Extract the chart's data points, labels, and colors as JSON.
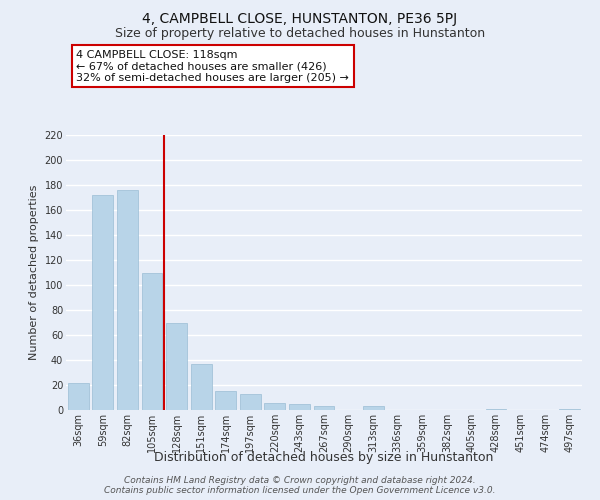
{
  "title": "4, CAMPBELL CLOSE, HUNSTANTON, PE36 5PJ",
  "subtitle": "Size of property relative to detached houses in Hunstanton",
  "xlabel": "Distribution of detached houses by size in Hunstanton",
  "ylabel": "Number of detached properties",
  "categories": [
    "36sqm",
    "59sqm",
    "82sqm",
    "105sqm",
    "128sqm",
    "151sqm",
    "174sqm",
    "197sqm",
    "220sqm",
    "243sqm",
    "267sqm",
    "290sqm",
    "313sqm",
    "336sqm",
    "359sqm",
    "382sqm",
    "405sqm",
    "428sqm",
    "451sqm",
    "474sqm",
    "497sqm"
  ],
  "values": [
    22,
    172,
    176,
    110,
    70,
    37,
    15,
    13,
    6,
    5,
    3,
    0,
    3,
    0,
    0,
    0,
    0,
    1,
    0,
    0,
    1
  ],
  "bar_color": "#b8d4e8",
  "bar_edge_color": "#9bbdd4",
  "vline_x": 3.5,
  "vline_color": "#cc0000",
  "annotation_text": "4 CAMPBELL CLOSE: 118sqm\n← 67% of detached houses are smaller (426)\n32% of semi-detached houses are larger (205) →",
  "annotation_box_color": "#ffffff",
  "annotation_box_edge": "#cc0000",
  "ylim": [
    0,
    220
  ],
  "yticks": [
    0,
    20,
    40,
    60,
    80,
    100,
    120,
    140,
    160,
    180,
    200,
    220
  ],
  "footer": "Contains HM Land Registry data © Crown copyright and database right 2024.\nContains public sector information licensed under the Open Government Licence v3.0.",
  "bg_color": "#e8eef8",
  "grid_color": "#ffffff",
  "title_fontsize": 10,
  "subtitle_fontsize": 9,
  "xlabel_fontsize": 9,
  "ylabel_fontsize": 8,
  "tick_fontsize": 7,
  "annotation_fontsize": 8,
  "footer_fontsize": 6.5
}
